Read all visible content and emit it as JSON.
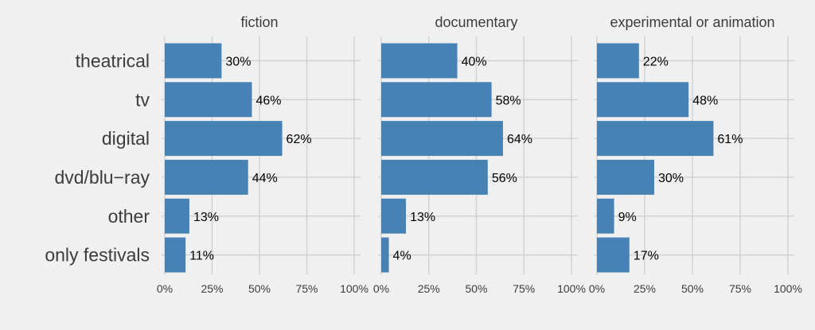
{
  "chart_data": {
    "type": "bar",
    "orientation": "horizontal",
    "facets": [
      "fiction",
      "documentary",
      "experimental or animation"
    ],
    "categories": [
      "theatrical",
      "tv",
      "digital",
      "dvd/blu−ray",
      "other",
      "only festivals"
    ],
    "series": [
      {
        "facet": "fiction",
        "values": [
          30,
          46,
          62,
          44,
          13,
          11
        ],
        "labels": [
          "30%",
          "46%",
          "62%",
          "44%",
          "13%",
          "11%"
        ]
      },
      {
        "facet": "documentary",
        "values": [
          40,
          58,
          64,
          56,
          13,
          4
        ],
        "labels": [
          "40%",
          "58%",
          "64%",
          "56%",
          "13%",
          "4%"
        ]
      },
      {
        "facet": "experimental or animation",
        "values": [
          22,
          48,
          61,
          30,
          9,
          17
        ],
        "labels": [
          "22%",
          "48%",
          "61%",
          "30%",
          "9%",
          "17%"
        ]
      }
    ],
    "x_ticks": [
      "0%",
      "25%",
      "50%",
      "75%",
      "100%"
    ],
    "xlim": [
      0,
      100
    ],
    "grid": true,
    "colors": {
      "bar": "#4682b4",
      "background": "#f0f0f0",
      "grid": "#d2d2d2"
    }
  }
}
